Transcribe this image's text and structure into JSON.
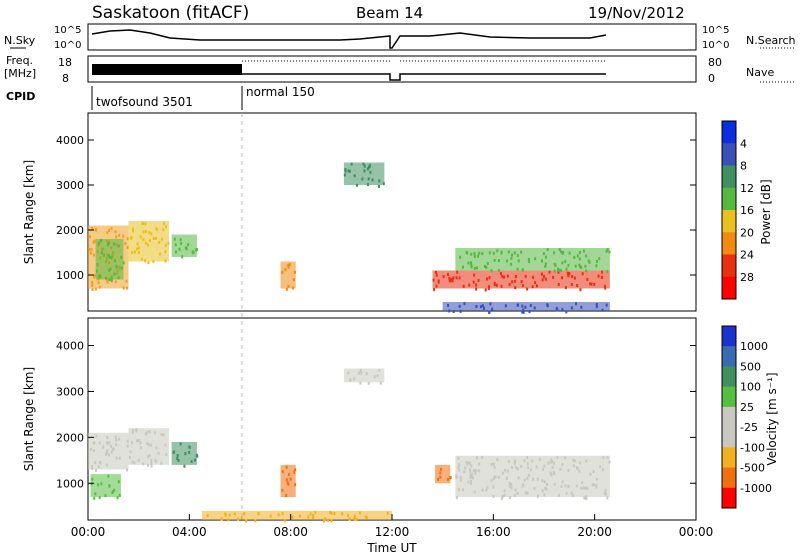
{
  "header": {
    "station": "Saskatoon (fitACF)",
    "beam": "Beam 14",
    "date": "19/Nov/2012"
  },
  "summary_panels": {
    "nsky_label": "N.Sky",
    "nsky_ticks": [
      "10^5",
      "10^0"
    ],
    "nsearch_label": "N.Search",
    "freq_label_1": "Freq.",
    "freq_label_2": "[MHz]",
    "freq_ticks": [
      "18",
      "8"
    ],
    "nave_label": "Nave",
    "nave_ticks": [
      "80",
      "0"
    ],
    "cpid_label": "CPID",
    "cpid_modes": [
      "twofsound 3501",
      "normal 150"
    ]
  },
  "chart_data": [
    {
      "type": "heatmap",
      "title": "",
      "ylabel": "Slant Range [km]",
      "xlabel": "",
      "ylim": [
        200,
        4600
      ],
      "yticks": [
        "1000",
        "2000",
        "3000",
        "4000"
      ],
      "colorbar_label": "Power [dB]",
      "colorbar_ticks": [
        "4",
        "8",
        "12",
        "16",
        "20",
        "24",
        "28"
      ],
      "colorbar_colors": [
        "#0a2ee0",
        "#3a4fb8",
        "#3f8f5f",
        "#55b840",
        "#e8c020",
        "#f08a10",
        "#e83010",
        "#ff0000"
      ],
      "regions": [
        {
          "t0": 0.0,
          "t1": 1.6,
          "r0": 700,
          "r1": 2100,
          "level": "#f0a020"
        },
        {
          "t0": 0.3,
          "t1": 1.4,
          "r0": 900,
          "r1": 1800,
          "level": "#55b840"
        },
        {
          "t0": 1.6,
          "t1": 3.2,
          "r0": 1300,
          "r1": 2200,
          "level": "#e8c020"
        },
        {
          "t0": 3.3,
          "t1": 4.3,
          "r0": 1400,
          "r1": 1900,
          "level": "#55b840"
        },
        {
          "t0": 7.6,
          "t1": 8.2,
          "r0": 700,
          "r1": 1300,
          "level": "#f08a10"
        },
        {
          "t0": 10.1,
          "t1": 11.7,
          "r0": 3000,
          "r1": 3500,
          "level": "#3f8f5f"
        },
        {
          "t0": 13.6,
          "t1": 20.6,
          "r0": 700,
          "r1": 1100,
          "level": "#e83010"
        },
        {
          "t0": 14.5,
          "t1": 20.6,
          "r0": 1100,
          "r1": 1600,
          "level": "#55b840"
        },
        {
          "t0": 14.0,
          "t1": 20.6,
          "r0": 200,
          "r1": 400,
          "level": "#3a4fb8"
        }
      ]
    },
    {
      "type": "heatmap",
      "title": "",
      "ylabel": "Slant Range [km]",
      "xlabel": "Time UT",
      "ylim": [
        200,
        4600
      ],
      "yticks": [
        "1000",
        "2000",
        "3000",
        "4000"
      ],
      "xticks": [
        "00:00",
        "04:00",
        "08:00",
        "12:00",
        "16:00",
        "20:00",
        "00:00"
      ],
      "colorbar_label": "Velocity [m s⁻¹]",
      "colorbar_ticks": [
        "1000",
        "500",
        "100",
        "25",
        "-25",
        "-100",
        "-500",
        "-1000"
      ],
      "colorbar_colors": [
        "#1a33cc",
        "#3a6ab0",
        "#3f8f5f",
        "#55c040",
        "#c8c8c0",
        "#c8c8c0",
        "#f0b020",
        "#f07010",
        "#ff0000"
      ],
      "regions": [
        {
          "t0": 0.0,
          "t1": 1.6,
          "r0": 1300,
          "r1": 2100,
          "level": "#c8c8c0"
        },
        {
          "t0": 0.1,
          "t1": 1.3,
          "r0": 700,
          "r1": 1200,
          "level": "#55c040"
        },
        {
          "t0": 1.6,
          "t1": 3.2,
          "r0": 1400,
          "r1": 2200,
          "level": "#c8c8c0"
        },
        {
          "t0": 3.3,
          "t1": 4.3,
          "r0": 1400,
          "r1": 1900,
          "level": "#3f8f5f"
        },
        {
          "t0": 7.6,
          "t1": 8.2,
          "r0": 700,
          "r1": 1400,
          "level": "#f07010"
        },
        {
          "t0": 10.1,
          "t1": 11.7,
          "r0": 3200,
          "r1": 3500,
          "level": "#c8c8c0"
        },
        {
          "t0": 13.7,
          "t1": 14.3,
          "r0": 1000,
          "r1": 1400,
          "level": "#f07010"
        },
        {
          "t0": 14.5,
          "t1": 20.6,
          "r0": 700,
          "r1": 1600,
          "level": "#c8c8c0"
        },
        {
          "t0": 4.5,
          "t1": 12.0,
          "r0": 200,
          "r1": 400,
          "level": "#f0b020"
        }
      ]
    }
  ]
}
